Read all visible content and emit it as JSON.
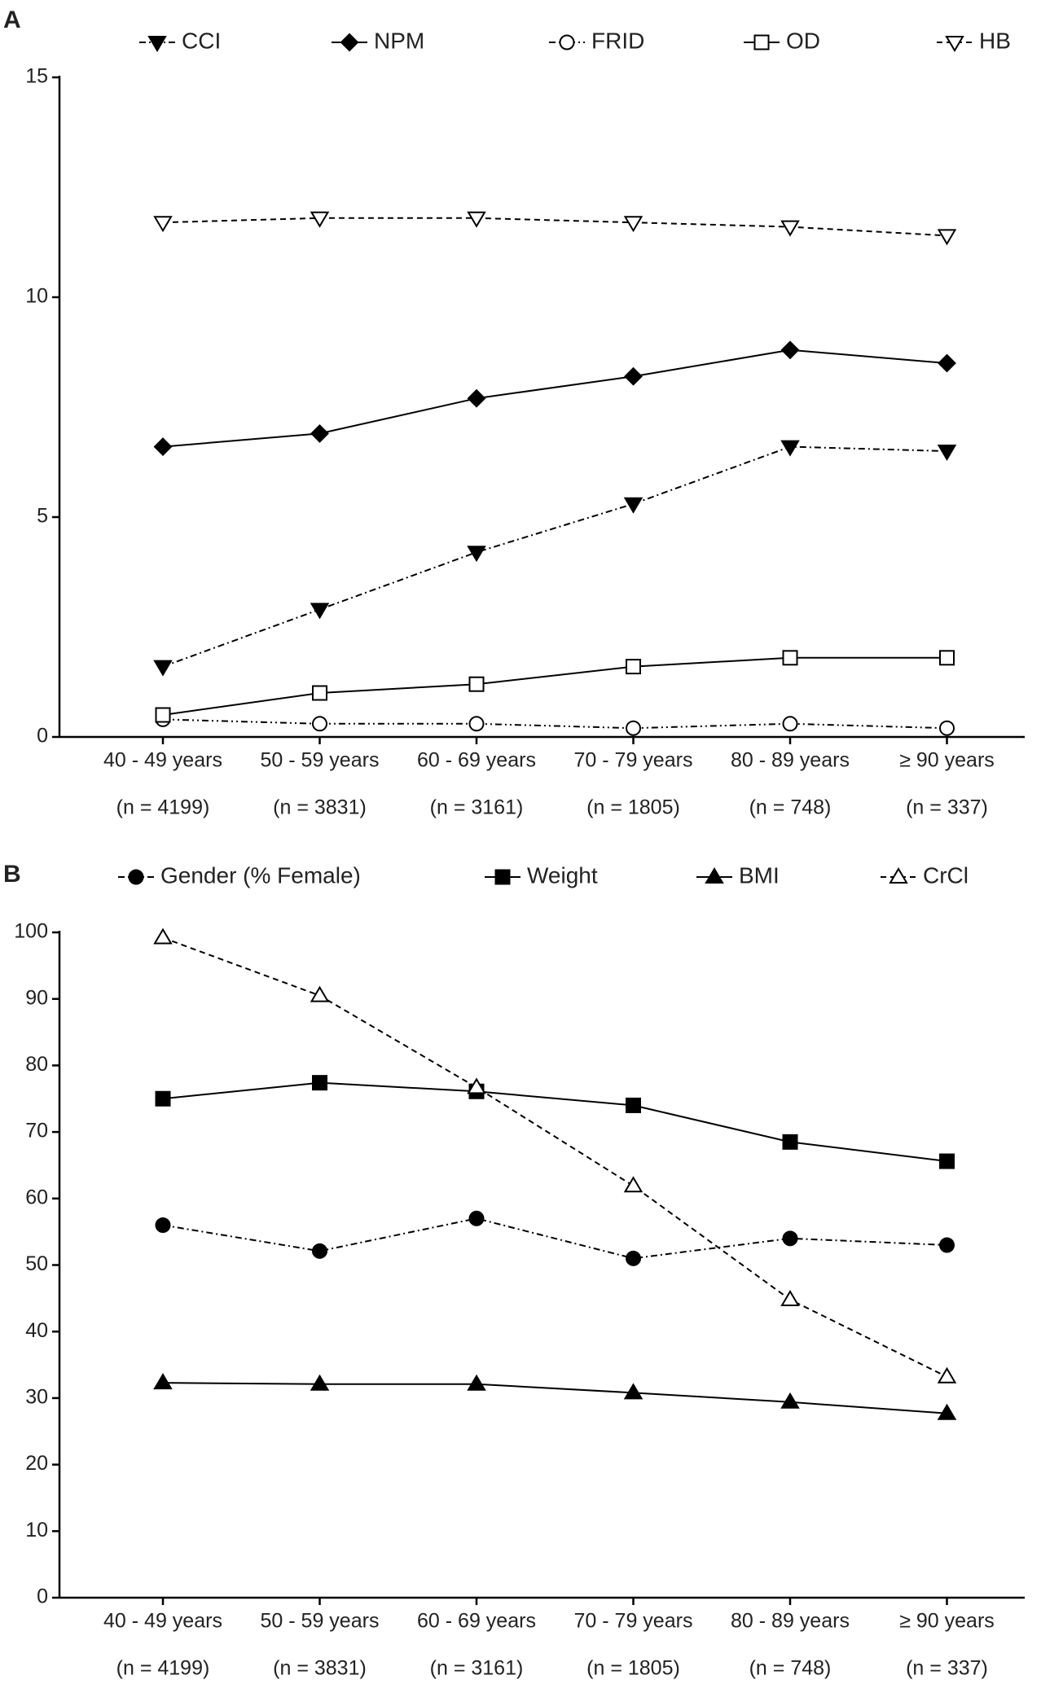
{
  "chart_data": [
    {
      "type": "line",
      "label": "A",
      "categories": [
        "40 - 49 years",
        "50 - 59 years",
        "60 - 69 years",
        "70 - 79 years",
        "80 - 89 years",
        "≥ 90 years"
      ],
      "sample_sizes": [
        "(n = 4199)",
        "(n = 3831)",
        "(n = 3161)",
        "(n = 1805)",
        "(n = 748)",
        "(n = 337)"
      ],
      "ylim": [
        0,
        15
      ],
      "yticks": [
        0,
        5,
        10,
        15
      ],
      "series": [
        {
          "name": "CCI",
          "color": "#000000",
          "marker": "triangle-down",
          "filled": true,
          "line_style": "dashdot",
          "values": [
            1.6,
            2.9,
            4.2,
            5.3,
            6.6,
            6.5
          ]
        },
        {
          "name": "NPM",
          "color": "#000000",
          "marker": "diamond",
          "filled": true,
          "line_style": "solid",
          "values": [
            6.6,
            6.9,
            7.7,
            8.2,
            8.8,
            8.5
          ]
        },
        {
          "name": "FRID",
          "color": "#000000",
          "marker": "circle",
          "filled": false,
          "line_style": "dashdotdot",
          "values": [
            0.4,
            0.3,
            0.3,
            0.2,
            0.3,
            0.2
          ]
        },
        {
          "name": "OD",
          "color": "#000000",
          "marker": "square",
          "filled": false,
          "line_style": "solid",
          "values": [
            0.5,
            1.0,
            1.2,
            1.6,
            1.8,
            1.8
          ]
        },
        {
          "name": "HB",
          "color": "#000000",
          "marker": "triangle-down",
          "filled": false,
          "line_style": "dashed",
          "values": [
            11.7,
            11.8,
            11.8,
            11.7,
            11.6,
            11.4
          ]
        }
      ]
    },
    {
      "type": "line",
      "label": "B",
      "categories": [
        "40 - 49 years",
        "50 - 59 years",
        "60 - 69 years",
        "70 - 79 years",
        "80 - 89 years",
        "≥ 90 years"
      ],
      "sample_sizes": [
        "(n = 4199)",
        "(n = 3831)",
        "(n = 3161)",
        "(n = 1805)",
        "(n = 748)",
        "(n = 337)"
      ],
      "ylim": [
        0,
        100
      ],
      "yticks": [
        0,
        10,
        20,
        30,
        40,
        50,
        60,
        70,
        80,
        90,
        100
      ],
      "series": [
        {
          "name": "Gender (% Female)",
          "color": "#000000",
          "marker": "circle",
          "filled": true,
          "line_style": "dashdot",
          "values": [
            56,
            52.1,
            57,
            51,
            54,
            53
          ]
        },
        {
          "name": "Weight",
          "color": "#000000",
          "marker": "square",
          "filled": true,
          "line_style": "solid",
          "values": [
            75,
            77.4,
            76.1,
            74,
            68.5,
            65.6
          ]
        },
        {
          "name": "BMI",
          "color": "#000000",
          "marker": "triangle-up",
          "filled": true,
          "line_style": "solid",
          "values": [
            32.3,
            32.1,
            32.1,
            30.8,
            29.4,
            27.7
          ]
        },
        {
          "name": "CrCl",
          "color": "#000000",
          "marker": "triangle-up",
          "filled": false,
          "line_style": "dashed",
          "values": [
            99.2,
            90.5,
            76.7,
            61.9,
            44.8,
            33.2
          ]
        }
      ]
    }
  ]
}
